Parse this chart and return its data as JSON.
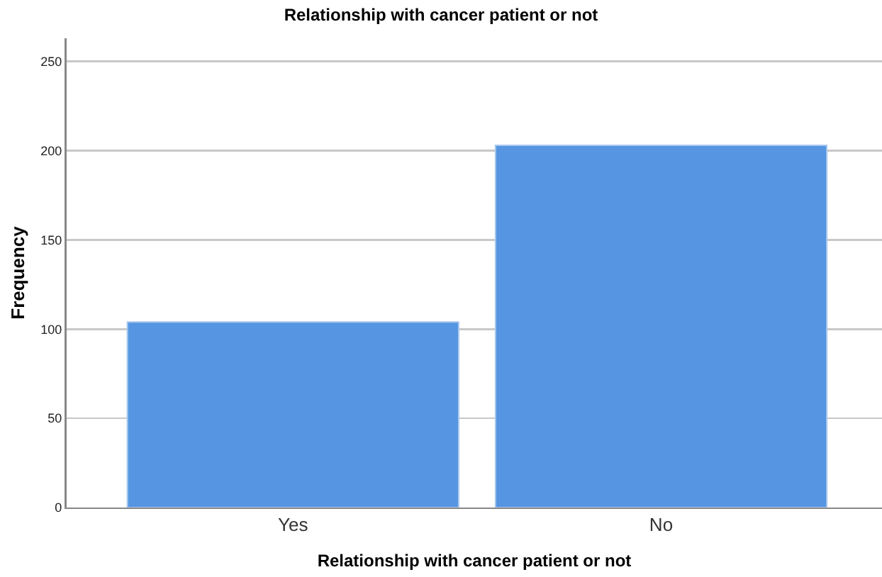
{
  "chart_data": {
    "type": "bar",
    "title": "Relationship with cancer patient or not",
    "xlabel": "Relationship with cancer patient or not",
    "ylabel": "Frequency",
    "categories": [
      "Yes",
      "No"
    ],
    "values": [
      104,
      203
    ],
    "color": "#5595e2",
    "ylim": [
      0,
      263
    ],
    "yticks": [
      0,
      50,
      100,
      150,
      200,
      250
    ],
    "grid": "y"
  }
}
